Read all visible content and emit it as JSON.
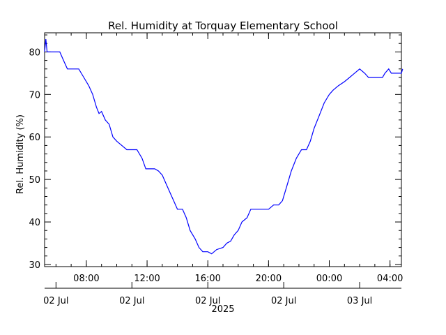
{
  "chart_data": {
    "type": "line",
    "title": "Rel. Humidity at Torquay Elementary School",
    "ylabel": "Rel. Humidity (%)",
    "xlabel": "",
    "ylim": [
      29.5,
      84.5
    ],
    "y_ticks": [
      30,
      40,
      50,
      60,
      70,
      80
    ],
    "xlim": [
      "2025-07-02 05:15",
      "2025-07-03 04:45"
    ],
    "x_ticks": [
      {
        "t": "2025-07-02 08:00",
        "label": "08:00"
      },
      {
        "t": "2025-07-02 12:00",
        "label": "12:00"
      },
      {
        "t": "2025-07-02 16:00",
        "label": "16:00"
      },
      {
        "t": "2025-07-02 20:00",
        "label": "20:00"
      },
      {
        "t": "2025-07-03 00:00",
        "label": "00:00"
      },
      {
        "t": "2025-07-03 04:00",
        "label": "04:00"
      }
    ],
    "date_ticks": [
      {
        "t": "2025-07-02 06:00",
        "label": "02 Jul"
      },
      {
        "t": "2025-07-02 11:00",
        "label": "02 Jul"
      },
      {
        "t": "2025-07-02 16:00",
        "label": "02 Jul"
      },
      {
        "t": "2025-07-02 21:00",
        "label": "02 Jul"
      },
      {
        "t": "2025-07-03 02:00",
        "label": "03 Jul"
      }
    ],
    "year_label": "2025",
    "grid": false,
    "series_color": "#0000ff",
    "series": [
      {
        "points": [
          [
            "2025-07-02 05:15",
            80
          ],
          [
            "2025-07-02 05:20",
            83
          ],
          [
            "2025-07-02 05:25",
            80
          ],
          [
            "2025-07-02 06:15",
            80
          ],
          [
            "2025-07-02 06:30",
            78
          ],
          [
            "2025-07-02 06:45",
            76
          ],
          [
            "2025-07-02 07:30",
            76
          ],
          [
            "2025-07-02 07:50",
            74
          ],
          [
            "2025-07-02 08:10",
            72
          ],
          [
            "2025-07-02 08:25",
            70
          ],
          [
            "2025-07-02 08:40",
            67
          ],
          [
            "2025-07-02 08:50",
            65.5
          ],
          [
            "2025-07-02 09:00",
            66
          ],
          [
            "2025-07-02 09:15",
            64
          ],
          [
            "2025-07-02 09:30",
            63
          ],
          [
            "2025-07-02 09:45",
            60
          ],
          [
            "2025-07-02 10:00",
            59
          ],
          [
            "2025-07-02 10:20",
            58
          ],
          [
            "2025-07-02 10:40",
            57
          ],
          [
            "2025-07-02 11:00",
            57
          ],
          [
            "2025-07-02 11:20",
            57
          ],
          [
            "2025-07-02 11:40",
            55
          ],
          [
            "2025-07-02 11:55",
            52.5
          ],
          [
            "2025-07-02 12:30",
            52.5
          ],
          [
            "2025-07-02 12:45",
            52
          ],
          [
            "2025-07-02 13:00",
            51
          ],
          [
            "2025-07-02 13:15",
            49
          ],
          [
            "2025-07-02 13:30",
            47
          ],
          [
            "2025-07-02 13:45",
            45
          ],
          [
            "2025-07-02 14:00",
            43
          ],
          [
            "2025-07-02 14:20",
            43
          ],
          [
            "2025-07-02 14:35",
            41
          ],
          [
            "2025-07-02 14:50",
            38
          ],
          [
            "2025-07-02 15:10",
            36
          ],
          [
            "2025-07-02 15:25",
            34
          ],
          [
            "2025-07-02 15:40",
            33
          ],
          [
            "2025-07-02 16:00",
            33
          ],
          [
            "2025-07-02 16:15",
            32.5
          ],
          [
            "2025-07-02 16:35",
            33.5
          ],
          [
            "2025-07-02 17:00",
            34
          ],
          [
            "2025-07-02 17:15",
            35
          ],
          [
            "2025-07-02 17:30",
            35.5
          ],
          [
            "2025-07-02 17:45",
            37
          ],
          [
            "2025-07-02 18:00",
            38
          ],
          [
            "2025-07-02 18:15",
            40
          ],
          [
            "2025-07-02 18:35",
            41
          ],
          [
            "2025-07-02 18:50",
            43
          ],
          [
            "2025-07-02 19:20",
            43
          ],
          [
            "2025-07-02 19:40",
            43
          ],
          [
            "2025-07-02 20:00",
            43
          ],
          [
            "2025-07-02 20:20",
            44
          ],
          [
            "2025-07-02 20:40",
            44
          ],
          [
            "2025-07-02 20:55",
            45
          ],
          [
            "2025-07-02 21:10",
            48
          ],
          [
            "2025-07-02 21:30",
            52
          ],
          [
            "2025-07-02 21:50",
            55
          ],
          [
            "2025-07-02 22:10",
            57
          ],
          [
            "2025-07-02 22:30",
            57
          ],
          [
            "2025-07-02 22:45",
            59
          ],
          [
            "2025-07-02 23:00",
            62
          ],
          [
            "2025-07-02 23:20",
            65
          ],
          [
            "2025-07-02 23:40",
            68
          ],
          [
            "2025-07-03 00:00",
            70
          ],
          [
            "2025-07-03 00:15",
            71
          ],
          [
            "2025-07-03 00:35",
            72
          ],
          [
            "2025-07-03 01:00",
            73
          ],
          [
            "2025-07-03 01:20",
            74
          ],
          [
            "2025-07-03 01:40",
            75
          ],
          [
            "2025-07-03 02:00",
            76
          ],
          [
            "2025-07-03 02:20",
            75
          ],
          [
            "2025-07-03 02:35",
            74
          ],
          [
            "2025-07-03 03:30",
            74
          ],
          [
            "2025-07-03 03:40",
            75
          ],
          [
            "2025-07-03 03:55",
            76
          ],
          [
            "2025-07-03 04:05",
            75
          ],
          [
            "2025-07-03 04:45",
            75
          ],
          [
            "2025-07-03 04:50",
            76
          ]
        ]
      }
    ]
  }
}
